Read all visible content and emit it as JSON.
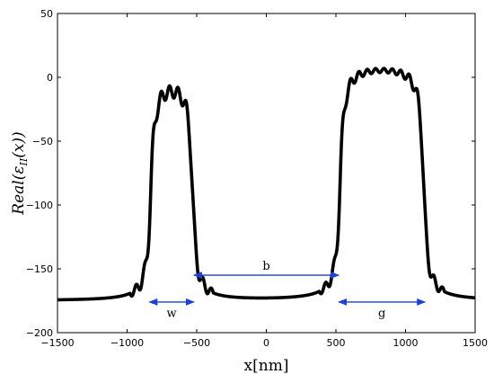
{
  "chart_data": {
    "type": "line",
    "xlabel": "x[nm]",
    "ylabel": "Real(ε",
    "ylabel_sub": "II",
    "ylabel_tail": "(x))",
    "xlim": [
      -1500,
      1500
    ],
    "ylim": [
      -200,
      50
    ],
    "xticks": [
      -1500,
      -1000,
      -500,
      0,
      500,
      1000,
      1500
    ],
    "yticks": [
      50,
      0,
      -50,
      -100,
      -150,
      -200
    ],
    "grid": false,
    "legend": "none",
    "series": [
      {
        "baseline": -175,
        "line_color": "#000000",
        "plateaus": [
          {
            "x_start": -830,
            "x_end": -530,
            "level": 5
          },
          {
            "x_start": 530,
            "x_end": 1130,
            "level": 14
          }
        ]
      }
    ],
    "annotations": [
      {
        "label": "w",
        "x_from": -840,
        "x_to": -520,
        "y": -176,
        "label_x": -680,
        "label_y": -185
      },
      {
        "label": "b",
        "x_from": -520,
        "x_to": 520,
        "y": -155,
        "label_x": 0,
        "label_y": -148
      },
      {
        "label": "g",
        "x_from": 520,
        "x_to": 1140,
        "y": -176,
        "label_x": 830,
        "label_y": -185
      }
    ],
    "annotation_color": "#1f3fd6"
  }
}
